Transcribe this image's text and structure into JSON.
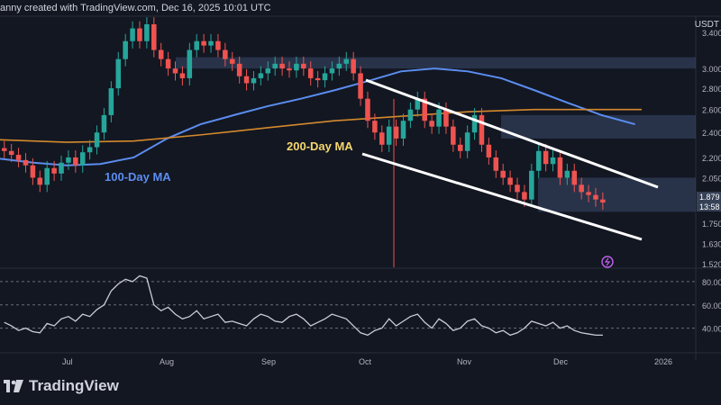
{
  "header": {
    "text": "anny created with TradingView.com, Dec 16, 2025 10:01 UTC"
  },
  "symbol": "USDT",
  "brand": {
    "name": "TradingView"
  },
  "annotations": {
    "ma100": "100-Day MA",
    "ma200": "200-Day MA"
  },
  "colors": {
    "background": "#131722",
    "up": "#26a69a",
    "down": "#ef5350",
    "ma100": "#5b8def",
    "ma200": "#d4892c",
    "zone": "#3a4a6b",
    "channel": "#ffffff",
    "rsi": "#c9ccd6",
    "ma200_label": "#f5d76e"
  },
  "chart_data": [
    {
      "type": "candlestick",
      "title": "",
      "xlabel": "",
      "ylabel": "",
      "x_ticks": [
        "Jul",
        "Aug",
        "Sep",
        "Oct",
        "Nov",
        "Dec",
        "2026"
      ],
      "y_ticks": [
        "3.4000",
        "3.0000",
        "2.8000",
        "2.6000",
        "2.4000",
        "2.2000",
        "2.0500",
        "1.7500",
        "1.6300",
        "1.5200"
      ],
      "price_labels": [
        "1.879",
        "13:58"
      ],
      "ylim": [
        1.5,
        3.6
      ],
      "log_scale": true,
      "series": [
        {
          "name": "100-Day MA",
          "type": "line",
          "points": [
            [
              0,
              2.19
            ],
            [
              5,
              2.16
            ],
            [
              10,
              2.14
            ],
            [
              15,
              2.15
            ],
            [
              20,
              2.2
            ],
            [
              25,
              2.35
            ],
            [
              30,
              2.47
            ],
            [
              35,
              2.55
            ],
            [
              40,
              2.63
            ],
            [
              45,
              2.7
            ],
            [
              50,
              2.78
            ],
            [
              55,
              2.87
            ],
            [
              60,
              2.97
            ],
            [
              65,
              3.0
            ],
            [
              70,
              2.97
            ],
            [
              75,
              2.9
            ],
            [
              80,
              2.78
            ],
            [
              85,
              2.66
            ],
            [
              90,
              2.55
            ],
            [
              95,
              2.47
            ]
          ]
        },
        {
          "name": "200-Day MA",
          "type": "line",
          "points": [
            [
              0,
              2.34
            ],
            [
              10,
              2.32
            ],
            [
              20,
              2.33
            ],
            [
              30,
              2.38
            ],
            [
              40,
              2.44
            ],
            [
              50,
              2.5
            ],
            [
              60,
              2.54
            ],
            [
              70,
              2.58
            ],
            [
              80,
              2.6
            ],
            [
              90,
              2.6
            ],
            [
              96,
              2.6
            ]
          ]
        }
      ],
      "candles_close": [
        2.25,
        2.22,
        2.18,
        2.14,
        2.05,
        2.0,
        2.12,
        2.08,
        2.16,
        2.2,
        2.14,
        2.24,
        2.28,
        2.4,
        2.55,
        2.8,
        3.1,
        3.3,
        3.45,
        3.3,
        3.5,
        3.2,
        3.1,
        3.0,
        2.95,
        2.9,
        3.2,
        3.3,
        3.25,
        3.3,
        3.2,
        3.1,
        3.05,
        2.92,
        2.85,
        2.9,
        2.95,
        3.0,
        3.05,
        3.0,
        2.98,
        3.05,
        3.0,
        2.9,
        2.88,
        2.95,
        3.0,
        3.05,
        3.1,
        2.95,
        2.7,
        2.5,
        2.4,
        2.3,
        2.45,
        2.35,
        2.5,
        2.6,
        2.7,
        2.5,
        2.45,
        2.6,
        2.45,
        2.3,
        2.25,
        2.4,
        2.55,
        2.3,
        2.2,
        2.1,
        2.05,
        2.0,
        1.95,
        1.9,
        2.1,
        2.25,
        2.15,
        2.2,
        2.05,
        2.1,
        2.0,
        1.95,
        1.93,
        1.9,
        1.88
      ],
      "zones": [
        {
          "y0": 3.0,
          "y1": 3.12
        },
        {
          "y0": 2.35,
          "y1": 2.55
        },
        {
          "y0": 1.82,
          "y1": 2.05
        }
      ],
      "channel": {
        "upper": [
          [
            62,
            3.1
          ],
          [
            94,
            2.07
          ]
        ],
        "lower": [
          [
            60,
            2.28
          ],
          [
            94,
            1.68
          ]
        ]
      }
    },
    {
      "type": "line",
      "title": "",
      "name": "RSI",
      "y_ticks": [
        "80.00",
        "60.00",
        "40.00"
      ],
      "ylim": [
        25,
        90
      ],
      "values": [
        45,
        42,
        38,
        40,
        37,
        36,
        44,
        42,
        48,
        50,
        46,
        52,
        50,
        56,
        60,
        72,
        78,
        82,
        80,
        85,
        83,
        60,
        55,
        58,
        52,
        48,
        50,
        55,
        48,
        50,
        52,
        45,
        46,
        44,
        42,
        48,
        52,
        50,
        46,
        45,
        50,
        52,
        48,
        42,
        45,
        48,
        52,
        50,
        48,
        42,
        36,
        34,
        38,
        40,
        48,
        42,
        46,
        50,
        52,
        45,
        40,
        48,
        44,
        38,
        40,
        46,
        48,
        42,
        40,
        36,
        38,
        34,
        36,
        40,
        46,
        44,
        42,
        45,
        40,
        42,
        38,
        36,
        35,
        34,
        34
      ]
    }
  ]
}
